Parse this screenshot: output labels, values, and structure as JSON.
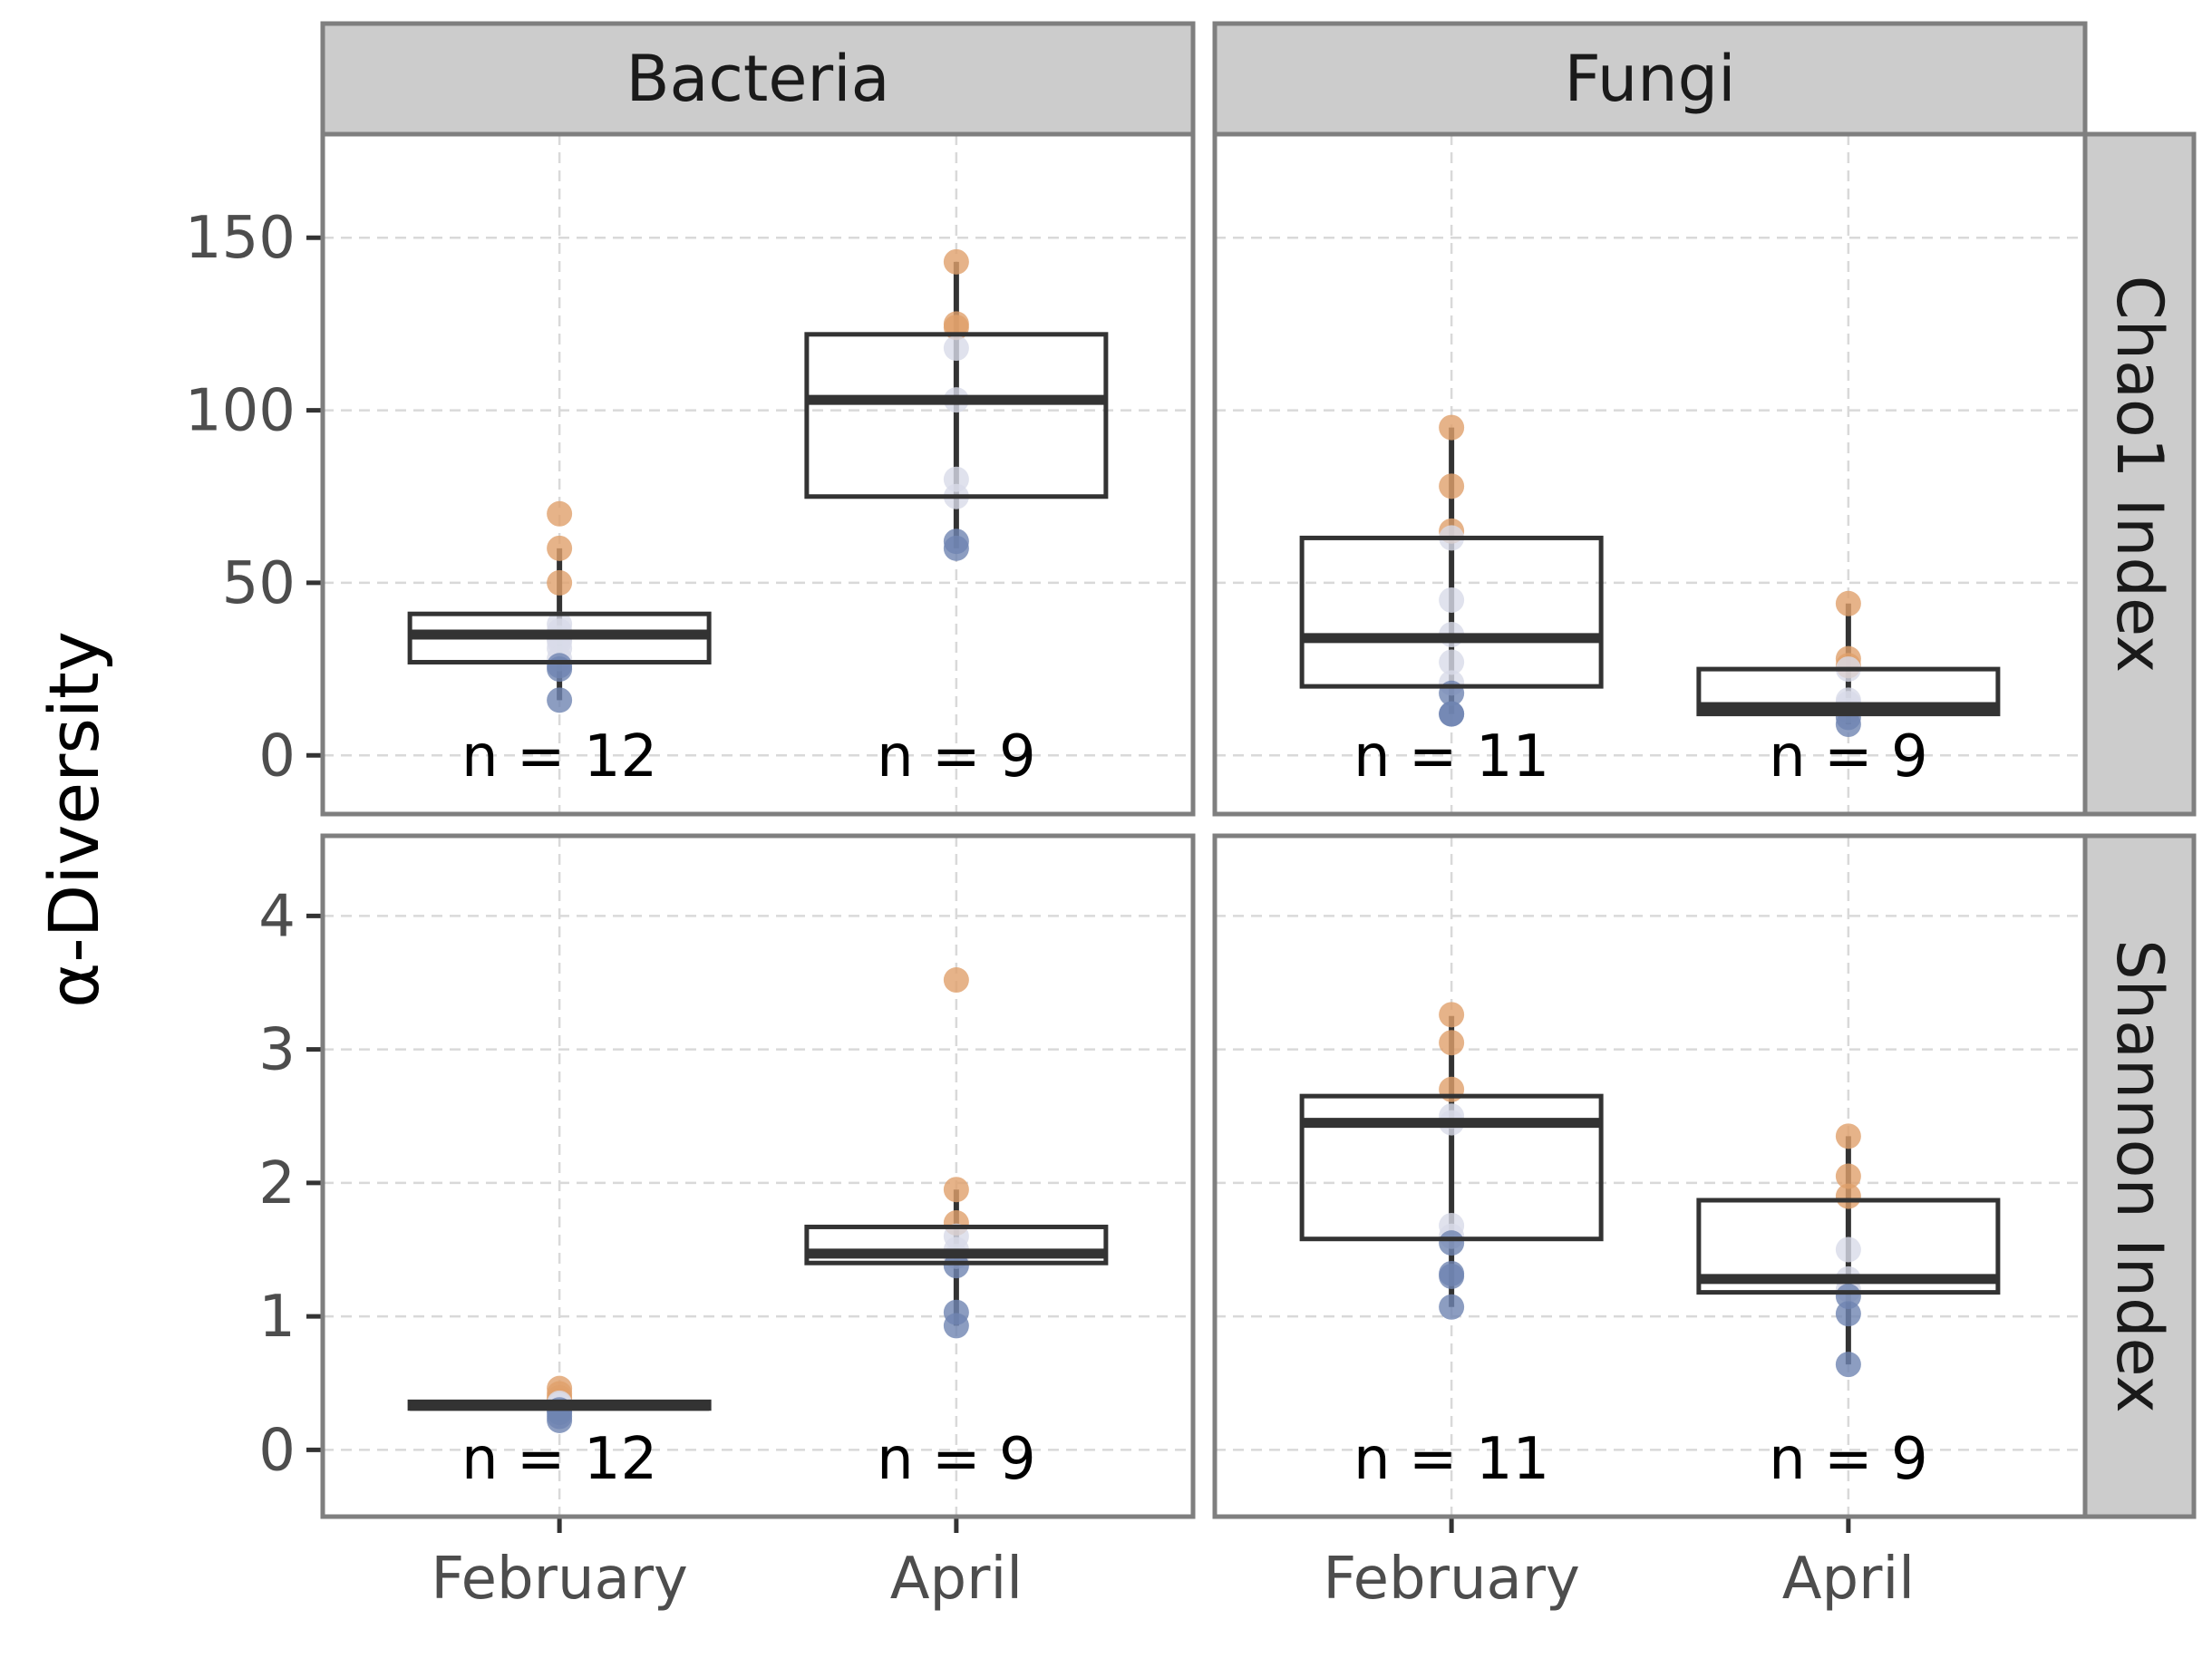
{
  "colors": {
    "strip_fill": "#cccccc",
    "panel_border": "#7f7f7f",
    "grid": "#d9d9d9",
    "box": "#333333",
    "point_high": "#e0a06b",
    "point_low": "#6f84b2",
    "point_mid": "#d8dbe8"
  },
  "chart_data": {
    "type": "box",
    "ylabel": "α-Diversity",
    "x_categories": [
      "February",
      "April"
    ],
    "columns": [
      "Bacteria",
      "Fungi"
    ],
    "rows": [
      "Chao1 Index",
      "Shannon Index"
    ],
    "row_axes": [
      {
        "ylim": [
          -17,
          180
        ],
        "ticks": [
          0,
          50,
          100,
          150
        ],
        "tick_labels": [
          "0",
          "50",
          "100",
          "150"
        ]
      },
      {
        "ylim": [
          -0.5,
          4.6
        ],
        "ticks": [
          0,
          1,
          2,
          3,
          4
        ],
        "tick_labels": [
          "0",
          "1",
          "2",
          "3",
          "4"
        ]
      }
    ],
    "panels": [
      {
        "row": 0,
        "col": 0,
        "groups": [
          {
            "x": "February",
            "n_label": "n = 12",
            "box": {
              "q1": 27,
              "median": 35,
              "q3": 41,
              "whisker_low": 16,
              "whisker_high": 60
            },
            "points": [
              70,
              60,
              50,
              38,
              36,
              34,
              33,
              31,
              28,
              26,
              25,
              16
            ]
          },
          {
            "x": "April",
            "n_label": "n = 9",
            "box": {
              "q1": 75,
              "median": 103,
              "q3": 122,
              "whisker_low": 60,
              "whisker_high": 143
            },
            "points": [
              143,
              125,
              124,
              118,
              103,
              80,
              75,
              62,
              60
            ]
          }
        ]
      },
      {
        "row": 0,
        "col": 1,
        "groups": [
          {
            "x": "February",
            "n_label": "n = 11",
            "box": {
              "q1": 20,
              "median": 34,
              "q3": 63,
              "whisker_low": 12,
              "whisker_high": 95
            },
            "points": [
              95,
              78,
              65,
              63,
              45,
              35,
              27,
              21,
              18,
              12,
              12
            ]
          },
          {
            "x": "April",
            "n_label": "n = 9",
            "box": {
              "q1": 12,
              "median": 14,
              "q3": 25,
              "whisker_low": 9,
              "whisker_high": 44
            },
            "points": [
              44,
              28,
              26,
              25,
              16,
              15,
              13,
              11,
              9
            ]
          }
        ]
      },
      {
        "row": 1,
        "col": 0,
        "groups": [
          {
            "x": "February",
            "n_label": "n = 12",
            "box": {
              "q1": 0.31,
              "median": 0.33,
              "q3": 0.36,
              "whisker_low": 0.22,
              "whisker_high": 0.46
            },
            "points": [
              0.46,
              0.42,
              0.39,
              0.37,
              0.35,
              0.34,
              0.33,
              0.32,
              0.3,
              0.28,
              0.25,
              0.22
            ]
          },
          {
            "x": "April",
            "n_label": "n = 9",
            "box": {
              "q1": 1.4,
              "median": 1.47,
              "q3": 1.67,
              "whisker_low": 0.93,
              "whisker_high": 1.95
            },
            "points": [
              3.52,
              1.95,
              1.7,
              1.6,
              1.5,
              1.45,
              1.38,
              1.03,
              0.93
            ]
          }
        ]
      },
      {
        "row": 1,
        "col": 1,
        "groups": [
          {
            "x": "February",
            "n_label": "n = 11",
            "box": {
              "q1": 1.58,
              "median": 2.45,
              "q3": 2.65,
              "whisker_low": 1.07,
              "whisker_high": 3.25
            },
            "points": [
              3.26,
              3.05,
              2.7,
              2.5,
              2.45,
              1.68,
              1.6,
              1.55,
              1.32,
              1.3,
              1.07
            ]
          },
          {
            "x": "April",
            "n_label": "n = 9",
            "box": {
              "q1": 1.18,
              "median": 1.28,
              "q3": 1.87,
              "whisker_low": 0.64,
              "whisker_high": 2.35
            },
            "points": [
              2.35,
              2.05,
              1.9,
              1.5,
              1.28,
              1.2,
              1.15,
              1.02,
              0.64
            ]
          }
        ]
      }
    ]
  }
}
